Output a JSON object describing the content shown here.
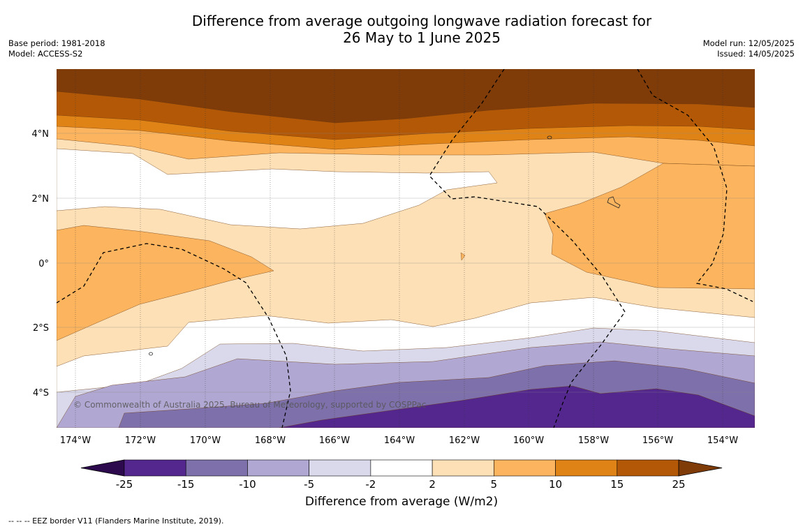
{
  "header": {
    "title_line1": "Difference from average outgoing longwave radiation forecast for",
    "title_line2": "26 May to 1 June 2025",
    "base_period": "Base period: 1981-2018",
    "model": "Model: ACCESS-S2",
    "model_run": "Model run: 12/05/2025",
    "issued": "Issued: 14/05/2025"
  },
  "map": {
    "lat_labels": [
      "4°N",
      "2°N",
      "0°",
      "2°S",
      "4°S"
    ],
    "lon_labels": [
      "174°W",
      "172°W",
      "170°W",
      "168°W",
      "166°W",
      "164°W",
      "162°W",
      "160°W",
      "158°W",
      "156°W",
      "154°W"
    ],
    "copyright": "© Commonwealth of Australia 2025, Bureau of Meteorology, supported by COSPPac"
  },
  "colorbar": {
    "ticks": [
      "-25",
      "-15",
      "-10",
      "-5",
      "-2",
      "2",
      "5",
      "10",
      "15",
      "25"
    ],
    "colors": [
      "#2d0a4e",
      "#54278f",
      "#7e71ab",
      "#b0a8d2",
      "#d9d9eb",
      "#ffffff",
      "#fde0b6",
      "#fcb45e",
      "#e08316",
      "#b35806",
      "#7f3b08"
    ],
    "title": "Difference from average (W/m2)"
  },
  "footnote": "--  --  -- EEZ border V11 (Flanders Marine Institute, 2019)."
}
